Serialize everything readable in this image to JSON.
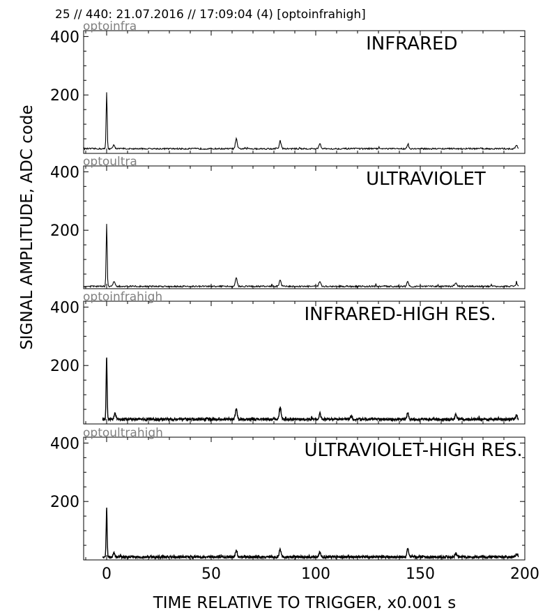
{
  "header": "25 // 440:   21.07.2016 // 17:09:04 (4)  [optoinfrahigh]",
  "ylabel": "SIGNAL AMPLITUDE,  ADC code",
  "xlabel": "TIME RELATIVE TO TRIGGER,   x0.001 s",
  "x_ticks": [
    "0",
    "50",
    "100",
    "150",
    "200"
  ],
  "y_ticks": [
    "400",
    "200"
  ],
  "colors": {
    "line": "#000000",
    "tag": "#808080",
    "axes": "#000000"
  },
  "chart_data": [
    {
      "type": "line",
      "tag": "optoinfra",
      "title": "INFRARED",
      "xlim": [
        -11,
        200
      ],
      "ylim": [
        0,
        420
      ],
      "baseline": 16,
      "x_start": -11,
      "x_end": 197,
      "peaks": [
        [
          0,
          210
        ],
        [
          3.5,
          30
        ],
        [
          62,
          50
        ],
        [
          83,
          42
        ],
        [
          102,
          33
        ],
        [
          144,
          30
        ],
        [
          196,
          28
        ]
      ]
    },
    {
      "type": "line",
      "tag": "optoultra",
      "title": "ULTRAVIOLET",
      "xlim": [
        -11,
        200
      ],
      "ylim": [
        0,
        420
      ],
      "baseline": 8,
      "x_start": -11,
      "x_end": 197,
      "peaks": [
        [
          0,
          220
        ],
        [
          3.5,
          25
        ],
        [
          62,
          38
        ],
        [
          83,
          30
        ],
        [
          102,
          26
        ],
        [
          144,
          24
        ],
        [
          167,
          20
        ],
        [
          196,
          18
        ]
      ]
    },
    {
      "type": "line",
      "tag": "optoinfrahigh",
      "title": "INFRARED-HIGH RES.",
      "xlim": [
        -11,
        200
      ],
      "ylim": [
        0,
        420
      ],
      "baseline": 16,
      "x_start": -2,
      "x_end": 197,
      "peaks": [
        [
          0,
          220
        ],
        [
          4,
          35
        ],
        [
          62,
          52
        ],
        [
          83,
          56
        ],
        [
          102,
          36
        ],
        [
          117,
          28
        ],
        [
          144,
          36
        ],
        [
          167,
          32
        ],
        [
          196,
          28
        ]
      ]
    },
    {
      "type": "line",
      "tag": "optoultrahigh",
      "title": "ULTRAVIOLET-HIGH RES.",
      "xlim": [
        -11,
        200
      ],
      "ylim": [
        0,
        420
      ],
      "baseline": 10,
      "x_start": -2,
      "x_end": 197,
      "peaks": [
        [
          0,
          165
        ],
        [
          3.5,
          25
        ],
        [
          62,
          33
        ],
        [
          83,
          36
        ],
        [
          102,
          26
        ],
        [
          144,
          38
        ],
        [
          167,
          22
        ],
        [
          196,
          20
        ]
      ]
    }
  ]
}
